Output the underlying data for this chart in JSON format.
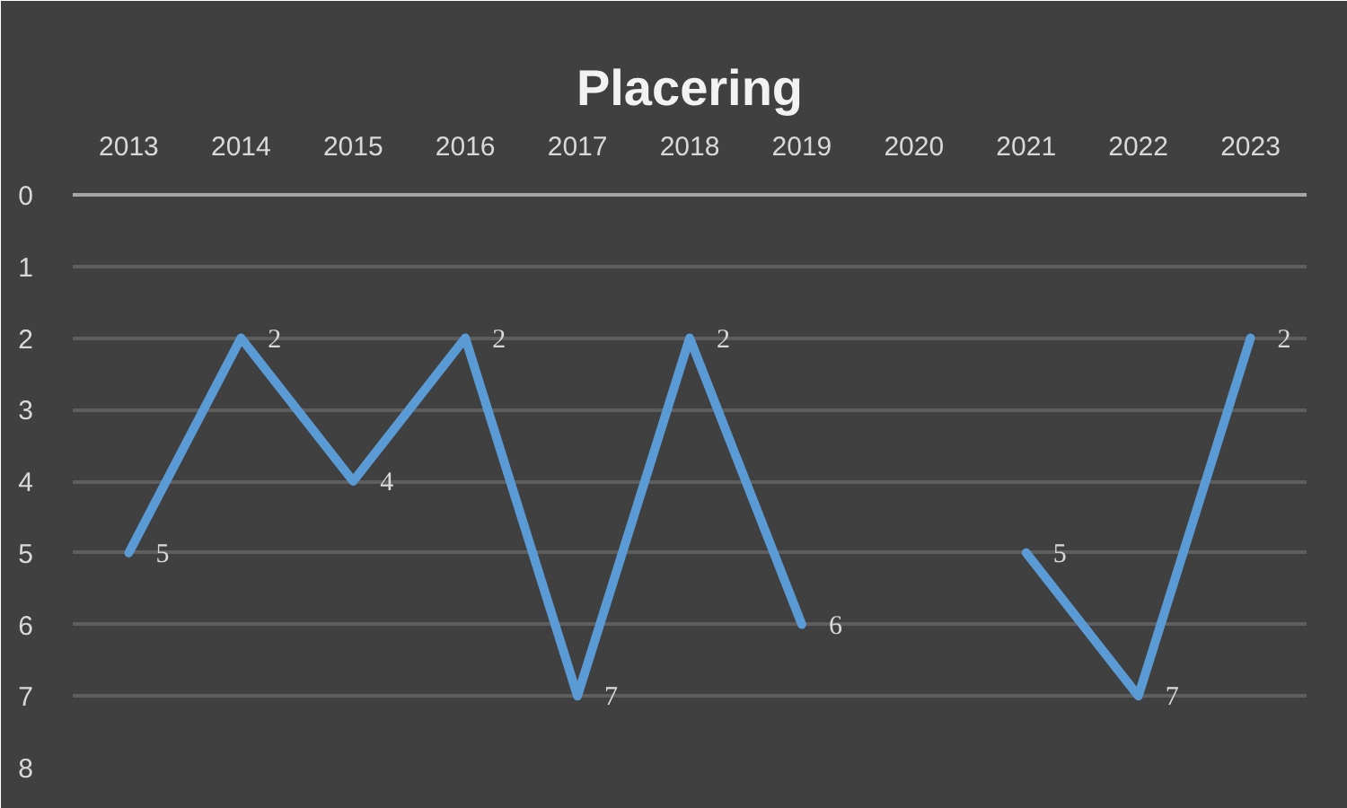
{
  "chart_data": {
    "type": "line",
    "title": "Placering",
    "categories": [
      "2013",
      "2014",
      "2015",
      "2016",
      "2017",
      "2018",
      "2019",
      "2020",
      "2021",
      "2022",
      "2023"
    ],
    "series": [
      {
        "color": "#5b9bd5",
        "values": [
          5,
          2,
          4,
          2,
          7,
          2,
          6,
          null,
          5,
          7,
          2
        ]
      }
    ],
    "ylim": [
      8,
      0
    ],
    "yticks": [
      0,
      1,
      2,
      3,
      4,
      5,
      6,
      7,
      8
    ],
    "grid": "y",
    "data_labels": true,
    "line_style": "solid"
  }
}
